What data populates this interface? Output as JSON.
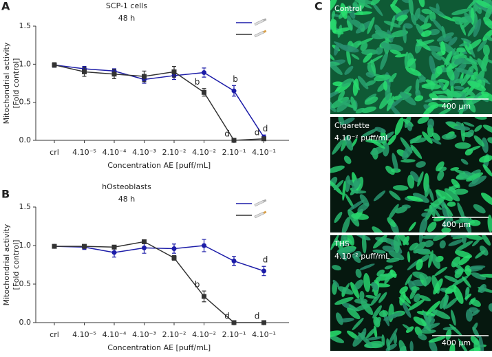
{
  "chart_data": [
    {
      "type": "line",
      "title": "SCP-1 cells",
      "subtitle": "48 h",
      "x_label": "Concentration AE [puff/mL]",
      "y_label": [
        "Mitochondrial activity",
        "[Fold control]"
      ],
      "categories": [
        "crl",
        "4.10⁻⁵",
        "4.10⁻⁴",
        "4.10⁻³",
        "2.10⁻²",
        "4.10⁻²",
        "2.10⁻¹",
        "4.10⁻¹"
      ],
      "ylim": [
        0,
        1.5
      ],
      "yticks": [
        {
          "value": 0,
          "label": "0.0"
        },
        {
          "value": 0.5,
          "label": "0.5"
        },
        {
          "value": 1,
          "label": "1.0"
        },
        {
          "value": 1.5,
          "label": "1.5"
        }
      ],
      "series": [
        {
          "color": "#1c1ca8",
          "values": [
            0.99,
            0.94,
            0.91,
            0.8,
            0.85,
            0.89,
            0.65,
            0.04
          ],
          "errors": [
            0.03,
            0.03,
            0.03,
            0.05,
            0.05,
            0.06,
            0.07,
            0.03
          ],
          "annotations": [
            null,
            null,
            null,
            null,
            null,
            null,
            "b",
            "d"
          ]
        },
        {
          "color": "#333333",
          "values": [
            0.99,
            0.9,
            0.87,
            0.84,
            0.9,
            0.63,
            0.0,
            0.02
          ],
          "errors": [
            0.03,
            0.06,
            0.06,
            0.07,
            0.07,
            0.05,
            0.0,
            0.0
          ],
          "annotations": [
            null,
            null,
            null,
            null,
            null,
            "b",
            "d",
            "d"
          ]
        }
      ]
    },
    {
      "type": "line",
      "title": "hOsteoblasts",
      "subtitle": "48 h",
      "x_label": "Concentration AE [puff/mL]",
      "y_label": [
        "Mitochondrial activity",
        "[Fold control]"
      ],
      "categories": [
        "crl",
        "4.10⁻⁵",
        "4.10⁻⁴",
        "4.10⁻³",
        "2.10⁻²",
        "4.10⁻²",
        "2.10⁻¹",
        "4.10⁻¹"
      ],
      "ylim": [
        0,
        1.5
      ],
      "yticks": [
        {
          "value": 0,
          "label": "0.0"
        },
        {
          "value": 0.5,
          "label": "0.5"
        },
        {
          "value": 1,
          "label": "1.0"
        },
        {
          "value": 1.5,
          "label": "1.5"
        }
      ],
      "series": [
        {
          "color": "#1c1ca8",
          "values": [
            0.99,
            0.98,
            0.91,
            0.97,
            0.96,
            1.0,
            0.8,
            0.67
          ],
          "errors": [
            0.02,
            0.03,
            0.06,
            0.07,
            0.06,
            0.08,
            0.06,
            0.06
          ],
          "annotations": [
            null,
            null,
            null,
            null,
            null,
            null,
            null,
            "d"
          ]
        },
        {
          "color": "#333333",
          "values": [
            0.99,
            0.99,
            0.98,
            1.05,
            0.84,
            0.34,
            0.0,
            0.0
          ],
          "errors": [
            0.02,
            0.02,
            0.02,
            0.02,
            0.03,
            0.07,
            0.0,
            0.0
          ],
          "annotations": [
            null,
            null,
            null,
            null,
            null,
            "b",
            "d",
            "d"
          ]
        }
      ]
    }
  ],
  "panel_labels": [
    "A",
    "B",
    "C"
  ],
  "images": [
    {
      "label": "Control",
      "scale_bar": "400 μm"
    },
    {
      "label": "Cigarette",
      "sublabel": "4.10⁻² puff/mL",
      "scale_bar": "400 μm"
    },
    {
      "label": "THS",
      "sublabel": "4.10⁻² puff/mL",
      "scale_bar": "400 μm"
    }
  ]
}
